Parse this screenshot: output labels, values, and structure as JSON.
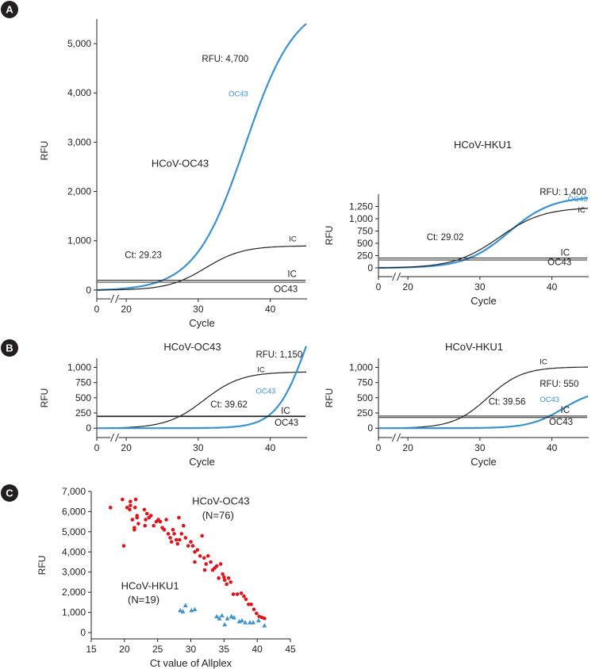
{
  "colors": {
    "oc43": "#3a93d0",
    "ic": "#222222",
    "threshold": "#222222",
    "threshold2": "#999999",
    "scatter_oc43": "#e0151b",
    "scatter_hku1": "#3a93d0",
    "panel_label_bg": "#231f20",
    "panel_label_fg": "#ffffff"
  },
  "panels": [
    {
      "id": "A",
      "label": "A"
    },
    {
      "id": "B",
      "label": "B"
    },
    {
      "id": "C",
      "label": "C"
    }
  ],
  "chart_data": [
    {
      "id": "A-left",
      "panel": "A",
      "type": "line",
      "title": "HCoV-OC43",
      "xlabel": "Cycle",
      "ylabel": "RFU",
      "xlim": [
        0,
        45
      ],
      "ylim": [
        -50,
        5500
      ],
      "xticks": [
        0,
        20,
        30,
        40
      ],
      "yticks": [
        0,
        1000,
        2000,
        3000,
        4000,
        5000
      ],
      "yticklabels": [
        "0",
        "1,000",
        "2,000",
        "3,000",
        "4,000",
        "5,000"
      ],
      "axis_break": true,
      "series": [
        {
          "name": "OC43",
          "color": "#3a93d0",
          "kind": "curve",
          "x_start": 16,
          "x_end": 45,
          "base": 0,
          "plateau": 5900,
          "midpoint": 36.5,
          "slope": 3.5
        },
        {
          "name": "IC",
          "color": "#222222",
          "kind": "curve",
          "x_start": 16,
          "x_end": 45,
          "base": 0,
          "plateau": 900,
          "midpoint": 31.0,
          "slope": 2.6
        },
        {
          "name": "IC",
          "color": "#222222",
          "kind": "hline",
          "y": 200,
          "x_start": 16,
          "x_end": 45
        },
        {
          "name": "OC43",
          "color": "#222222",
          "kind": "hline",
          "y": 160,
          "x_start": 16,
          "x_end": 45
        }
      ],
      "annotations": [
        {
          "text": "RFU: 4,700",
          "x": 30.5,
          "y": 4630,
          "color": "#222222"
        },
        {
          "text": "OC43",
          "x": 34.2,
          "y": 3930,
          "color": "#3a93d0",
          "small": true
        },
        {
          "text": "HCoV-OC43",
          "x": 23.5,
          "y": 2500,
          "color": "#222222",
          "big": true
        },
        {
          "text": "IC",
          "x": 42.6,
          "y": 990,
          "color": "#222222",
          "small": true
        },
        {
          "text": "Ct: 29.23",
          "x": 19.8,
          "y": 650,
          "color": "#222222"
        },
        {
          "text": "IC",
          "x": 42.4,
          "y": 260,
          "color": "#222222"
        },
        {
          "text": "OC43",
          "x": 40.5,
          "y": -40,
          "color": "#222222"
        }
      ]
    },
    {
      "id": "A-right",
      "panel": "A",
      "type": "line",
      "title": "HCoV-HKU1",
      "xlabel": "Cycle",
      "ylabel": "RFU",
      "xlim": [
        0,
        45
      ],
      "ylim": [
        -50,
        1500
      ],
      "xticks": [
        0,
        20,
        30,
        40
      ],
      "yticks": [
        0,
        250,
        500,
        750,
        1000,
        1250
      ],
      "yticklabels": [
        "0",
        "250",
        "500",
        "750",
        "1,000",
        "1,250"
      ],
      "axis_break": true,
      "series": [
        {
          "name": "OC43",
          "color": "#3a93d0",
          "kind": "curve",
          "x_start": 16,
          "x_end": 45,
          "base": 0,
          "plateau": 1460,
          "midpoint": 34.0,
          "slope": 3.0
        },
        {
          "name": "IC",
          "color": "#222222",
          "kind": "curve",
          "x_start": 16,
          "x_end": 45,
          "base": 0,
          "plateau": 1240,
          "midpoint": 32.6,
          "slope": 3.1
        },
        {
          "name": "IC",
          "color": "#222222",
          "kind": "hline",
          "y": 200,
          "x_start": 16,
          "x_end": 45
        },
        {
          "name": "OC43",
          "color": "#222222",
          "kind": "hline",
          "y": 160,
          "x_start": 16,
          "x_end": 45
        }
      ],
      "annotations": [
        {
          "text": "RFU: 1,400",
          "x": 38.3,
          "y": 1480,
          "color": "#222222"
        },
        {
          "text": "OC43",
          "x": 42.2,
          "y": 1355,
          "color": "#3a93d0",
          "small": true
        },
        {
          "text": "IC",
          "x": 43.6,
          "y": 1130,
          "color": "#222222",
          "small": true
        },
        {
          "text": "Ct: 29.02",
          "x": 22.6,
          "y": 560,
          "color": "#222222"
        },
        {
          "text": "IC",
          "x": 41.2,
          "y": 250,
          "color": "#222222"
        },
        {
          "text": "OC43",
          "x": 39.4,
          "y": 55,
          "color": "#222222"
        }
      ]
    },
    {
      "id": "B-left",
      "panel": "B",
      "type": "line",
      "title": "HCoV-OC43",
      "xlabel": "Cycle",
      "ylabel": "RFU",
      "xlim": [
        0,
        45
      ],
      "ylim": [
        -50,
        1150
      ],
      "xticks": [
        0,
        20,
        30,
        40
      ],
      "yticks": [
        0,
        250,
        500,
        750,
        1000
      ],
      "yticklabels": [
        "0",
        "250",
        "500",
        "750",
        "1,000"
      ],
      "axis_break": true,
      "series": [
        {
          "name": "IC",
          "color": "#222222",
          "kind": "curve",
          "x_start": 16,
          "x_end": 45,
          "base": 0,
          "plateau": 930,
          "midpoint": 30.8,
          "slope": 2.6
        },
        {
          "name": "OC43",
          "color": "#3a93d0",
          "kind": "curve",
          "x_start": 16,
          "x_end": 45,
          "base": 0,
          "plateau": 2700,
          "midpoint": 45.0,
          "slope": 2.1
        },
        {
          "name": "IC",
          "color": "#222222",
          "kind": "hline",
          "y": 200,
          "x_start": 16,
          "x_end": 45
        },
        {
          "name": "OC43",
          "color": "#222222",
          "kind": "hline",
          "y": 190,
          "x_start": 16,
          "x_end": 45
        }
      ],
      "annotations": [
        {
          "text": "RFU: 1,150",
          "x": 38.0,
          "y": 1160,
          "color": "#222222"
        },
        {
          "text": "IC",
          "x": 38.2,
          "y": 920,
          "color": "#222222",
          "small": true
        },
        {
          "text": "OC43",
          "x": 38.0,
          "y": 570,
          "color": "#3a93d0",
          "small": true
        },
        {
          "text": "Ct: 39.62",
          "x": 31.7,
          "y": 340,
          "color": "#222222"
        },
        {
          "text": "IC",
          "x": 41.5,
          "y": 235,
          "color": "#222222"
        },
        {
          "text": "OC43",
          "x": 40.6,
          "y": 40,
          "color": "#222222"
        }
      ]
    },
    {
      "id": "B-right",
      "panel": "B",
      "type": "line",
      "title": "HCoV-HKU1",
      "xlabel": "Cycle",
      "ylabel": "RFU",
      "xlim": [
        0,
        45
      ],
      "ylim": [
        -50,
        1150
      ],
      "xticks": [
        0,
        20,
        30,
        40
      ],
      "yticks": [
        0,
        250,
        500,
        750,
        1000
      ],
      "yticklabels": [
        "0",
        "250",
        "500",
        "750",
        "1,000"
      ],
      "axis_break": true,
      "series": [
        {
          "name": "IC",
          "color": "#222222",
          "kind": "curve",
          "x_start": 16,
          "x_end": 45,
          "base": 0,
          "plateau": 1010,
          "midpoint": 31.1,
          "slope": 2.4
        },
        {
          "name": "OC43",
          "color": "#3a93d0",
          "kind": "curve",
          "x_start": 16,
          "x_end": 45,
          "base": 0,
          "plateau": 640,
          "midpoint": 41.5,
          "slope": 2.3
        },
        {
          "name": "IC",
          "color": "#222222",
          "kind": "hline",
          "y": 200,
          "x_start": 16,
          "x_end": 45
        },
        {
          "name": "OC43",
          "color": "#222222",
          "kind": "hline",
          "y": 175,
          "x_start": 16,
          "x_end": 45
        }
      ],
      "annotations": [
        {
          "text": "IC",
          "x": 38.3,
          "y": 1050,
          "color": "#222222",
          "small": true
        },
        {
          "text": "RFU: 550",
          "x": 38.3,
          "y": 680,
          "color": "#222222"
        },
        {
          "text": "Ct: 39.56",
          "x": 31.2,
          "y": 390,
          "color": "#222222"
        },
        {
          "text": "OC43",
          "x": 38.3,
          "y": 430,
          "color": "#3a93d0",
          "small": true
        },
        {
          "text": "IC",
          "x": 41.2,
          "y": 250,
          "color": "#222222"
        },
        {
          "text": "OC43",
          "x": 39.6,
          "y": 55,
          "color": "#222222"
        }
      ]
    },
    {
      "id": "C",
      "panel": "C",
      "type": "scatter",
      "title": "",
      "xlabel": "Ct value of Allplex",
      "ylabel": "RFU",
      "xlim": [
        15,
        45
      ],
      "ylim": [
        0,
        7000
      ],
      "xticks": [
        15,
        20,
        25,
        30,
        35,
        40,
        45
      ],
      "yticks": [
        0,
        1000,
        2000,
        3000,
        4000,
        5000,
        6000,
        7000
      ],
      "yticklabels": [
        "0",
        "1,000",
        "2,000",
        "3,000",
        "4,000",
        "5,000",
        "6,000",
        "7,000"
      ],
      "series": [
        {
          "name": "HCoV-OC43 (N=76)",
          "marker": "circle",
          "color": "#e0151b",
          "points": [
            [
              17.9,
              6200
            ],
            [
              19.7,
              6600
            ],
            [
              20.4,
              6200
            ],
            [
              20.9,
              6300
            ],
            [
              20.9,
              6500
            ],
            [
              21.2,
              5600
            ],
            [
              21.5,
              5100
            ],
            [
              21.6,
              6200
            ],
            [
              21.7,
              6600
            ],
            [
              21.9,
              5800
            ],
            [
              21.9,
              5700
            ],
            [
              22.1,
              5400
            ],
            [
              21.5,
              5200
            ],
            [
              19.9,
              4300
            ],
            [
              20.8,
              6100
            ],
            [
              23.0,
              6100
            ],
            [
              23.1,
              5300
            ],
            [
              23.2,
              5600
            ],
            [
              23.4,
              5900
            ],
            [
              23.7,
              5700
            ],
            [
              24.0,
              5800
            ],
            [
              24.4,
              5300
            ],
            [
              24.8,
              5500
            ],
            [
              25.1,
              5600
            ],
            [
              25.4,
              5500
            ],
            [
              25.7,
              5200
            ],
            [
              26.0,
              5100
            ],
            [
              26.3,
              5600
            ],
            [
              26.6,
              4900
            ],
            [
              26.9,
              4700
            ],
            [
              27.3,
              5100
            ],
            [
              27.5,
              4900
            ],
            [
              27.8,
              4600
            ],
            [
              28.0,
              4400
            ],
            [
              28.3,
              4600
            ],
            [
              28.6,
              4900
            ],
            [
              28.9,
              5300
            ],
            [
              29.2,
              4700
            ],
            [
              29.6,
              4300
            ],
            [
              30.0,
              4500
            ],
            [
              30.3,
              4300
            ],
            [
              30.6,
              4000
            ],
            [
              31.0,
              4100
            ],
            [
              31.4,
              3800
            ],
            [
              31.7,
              4800
            ],
            [
              32.0,
              3700
            ],
            [
              32.3,
              3400
            ],
            [
              32.6,
              3800
            ],
            [
              33.0,
              3500
            ],
            [
              33.3,
              3100
            ],
            [
              33.6,
              3200
            ],
            [
              33.9,
              3300
            ],
            [
              34.2,
              2700
            ],
            [
              34.5,
              3400
            ],
            [
              34.8,
              2900
            ],
            [
              35.1,
              2600
            ],
            [
              35.4,
              2400
            ],
            [
              35.7,
              2700
            ],
            [
              36.0,
              2500
            ],
            [
              36.4,
              1900
            ],
            [
              37.0,
              1900
            ],
            [
              37.6,
              1950
            ],
            [
              38.0,
              1800
            ],
            [
              38.3,
              1650
            ],
            [
              38.7,
              1400
            ],
            [
              39.1,
              1400
            ],
            [
              39.5,
              1150
            ],
            [
              39.9,
              950
            ],
            [
              40.3,
              800
            ],
            [
              40.7,
              750
            ],
            [
              41.1,
              700
            ],
            [
              30.6,
              3500
            ],
            [
              27.1,
              4500
            ],
            [
              28.2,
              5700
            ],
            [
              32.1,
              3100
            ],
            [
              35.0,
              2750
            ]
          ]
        },
        {
          "name": "HCoV-HKU1 (N=19)",
          "marker": "triangle",
          "color": "#3a93d0",
          "points": [
            [
              28.4,
              1100
            ],
            [
              28.8,
              1050
            ],
            [
              29.2,
              1350
            ],
            [
              30.1,
              1100
            ],
            [
              30.6,
              1150
            ],
            [
              33.9,
              800
            ],
            [
              34.3,
              700
            ],
            [
              34.7,
              850
            ],
            [
              35.1,
              400
            ],
            [
              35.5,
              700
            ],
            [
              36.1,
              800
            ],
            [
              37.3,
              550
            ],
            [
              37.7,
              600
            ],
            [
              38.2,
              500
            ],
            [
              38.9,
              500
            ],
            [
              39.4,
              500
            ],
            [
              40.2,
              600
            ],
            [
              41.1,
              350
            ],
            [
              36.5,
              750
            ]
          ]
        }
      ],
      "annotations": [
        {
          "text": "HCoV-OC43",
          "x": 30.2,
          "y": 6350,
          "color": "#222222",
          "big": true
        },
        {
          "text": "(N=76)",
          "x": 31.7,
          "y": 5650,
          "color": "#222222",
          "big": true
        },
        {
          "text": "HCoV-HKU1",
          "x": 19.5,
          "y": 2150,
          "color": "#222222",
          "big": true
        },
        {
          "text": "(N=19)",
          "x": 20.5,
          "y": 1450,
          "color": "#222222",
          "big": true
        }
      ]
    }
  ]
}
